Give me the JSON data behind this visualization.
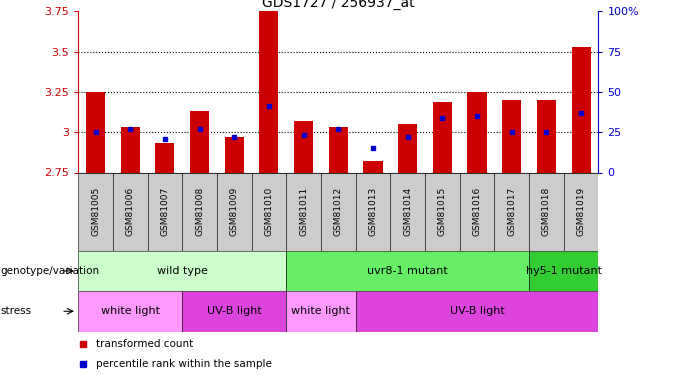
{
  "title": "GDS1727 / 256937_at",
  "samples": [
    "GSM81005",
    "GSM81006",
    "GSM81007",
    "GSM81008",
    "GSM81009",
    "GSM81010",
    "GSM81011",
    "GSM81012",
    "GSM81013",
    "GSM81014",
    "GSM81015",
    "GSM81016",
    "GSM81017",
    "GSM81018",
    "GSM81019"
  ],
  "red_values": [
    3.25,
    3.03,
    2.93,
    3.13,
    2.97,
    3.75,
    3.07,
    3.03,
    2.82,
    3.05,
    3.19,
    3.25,
    3.2,
    3.2,
    3.53
  ],
  "blue_values": [
    3.0,
    3.02,
    2.96,
    3.02,
    2.97,
    3.16,
    2.98,
    3.02,
    2.9,
    2.97,
    3.09,
    3.1,
    3.0,
    3.0,
    3.12
  ],
  "ymin": 2.75,
  "ymax": 3.75,
  "yticks": [
    2.75,
    3.0,
    3.25,
    3.5,
    3.75
  ],
  "ytick_labels": [
    "2.75",
    "3",
    "3.25",
    "3.5",
    "3.75"
  ],
  "right_yticks": [
    0,
    25,
    50,
    75,
    100
  ],
  "right_ytick_labels": [
    "0",
    "25",
    "50",
    "75",
    "100%"
  ],
  "grid_lines": [
    3.0,
    3.25,
    3.5
  ],
  "bar_color": "#CC0000",
  "blue_color": "#0000CC",
  "bar_width": 0.55,
  "genotype_groups": [
    {
      "label": "wild type",
      "start": 0,
      "end": 6,
      "color": "#ccffcc"
    },
    {
      "label": "uvr8-1 mutant",
      "start": 6,
      "end": 13,
      "color": "#66ee66"
    },
    {
      "label": "hy5-1 mutant",
      "start": 13,
      "end": 15,
      "color": "#33cc33"
    }
  ],
  "stress_groups": [
    {
      "label": "white light",
      "start": 0,
      "end": 3,
      "color": "#ff99ff"
    },
    {
      "label": "UV-B light",
      "start": 3,
      "end": 6,
      "color": "#dd44dd"
    },
    {
      "label": "white light",
      "start": 6,
      "end": 8,
      "color": "#ff99ff"
    },
    {
      "label": "UV-B light",
      "start": 8,
      "end": 15,
      "color": "#dd44dd"
    }
  ],
  "legend_items": [
    {
      "label": "transformed count",
      "color": "#CC0000"
    },
    {
      "label": "percentile rank within the sample",
      "color": "#0000CC"
    }
  ],
  "left_label": "genotype/variation",
  "stress_label": "stress",
  "sample_box_color": "#cccccc",
  "background_color": "#ffffff",
  "plot_bg": "#ffffff",
  "axis_color_left": "#CC0000",
  "axis_color_right": "#0000CC"
}
